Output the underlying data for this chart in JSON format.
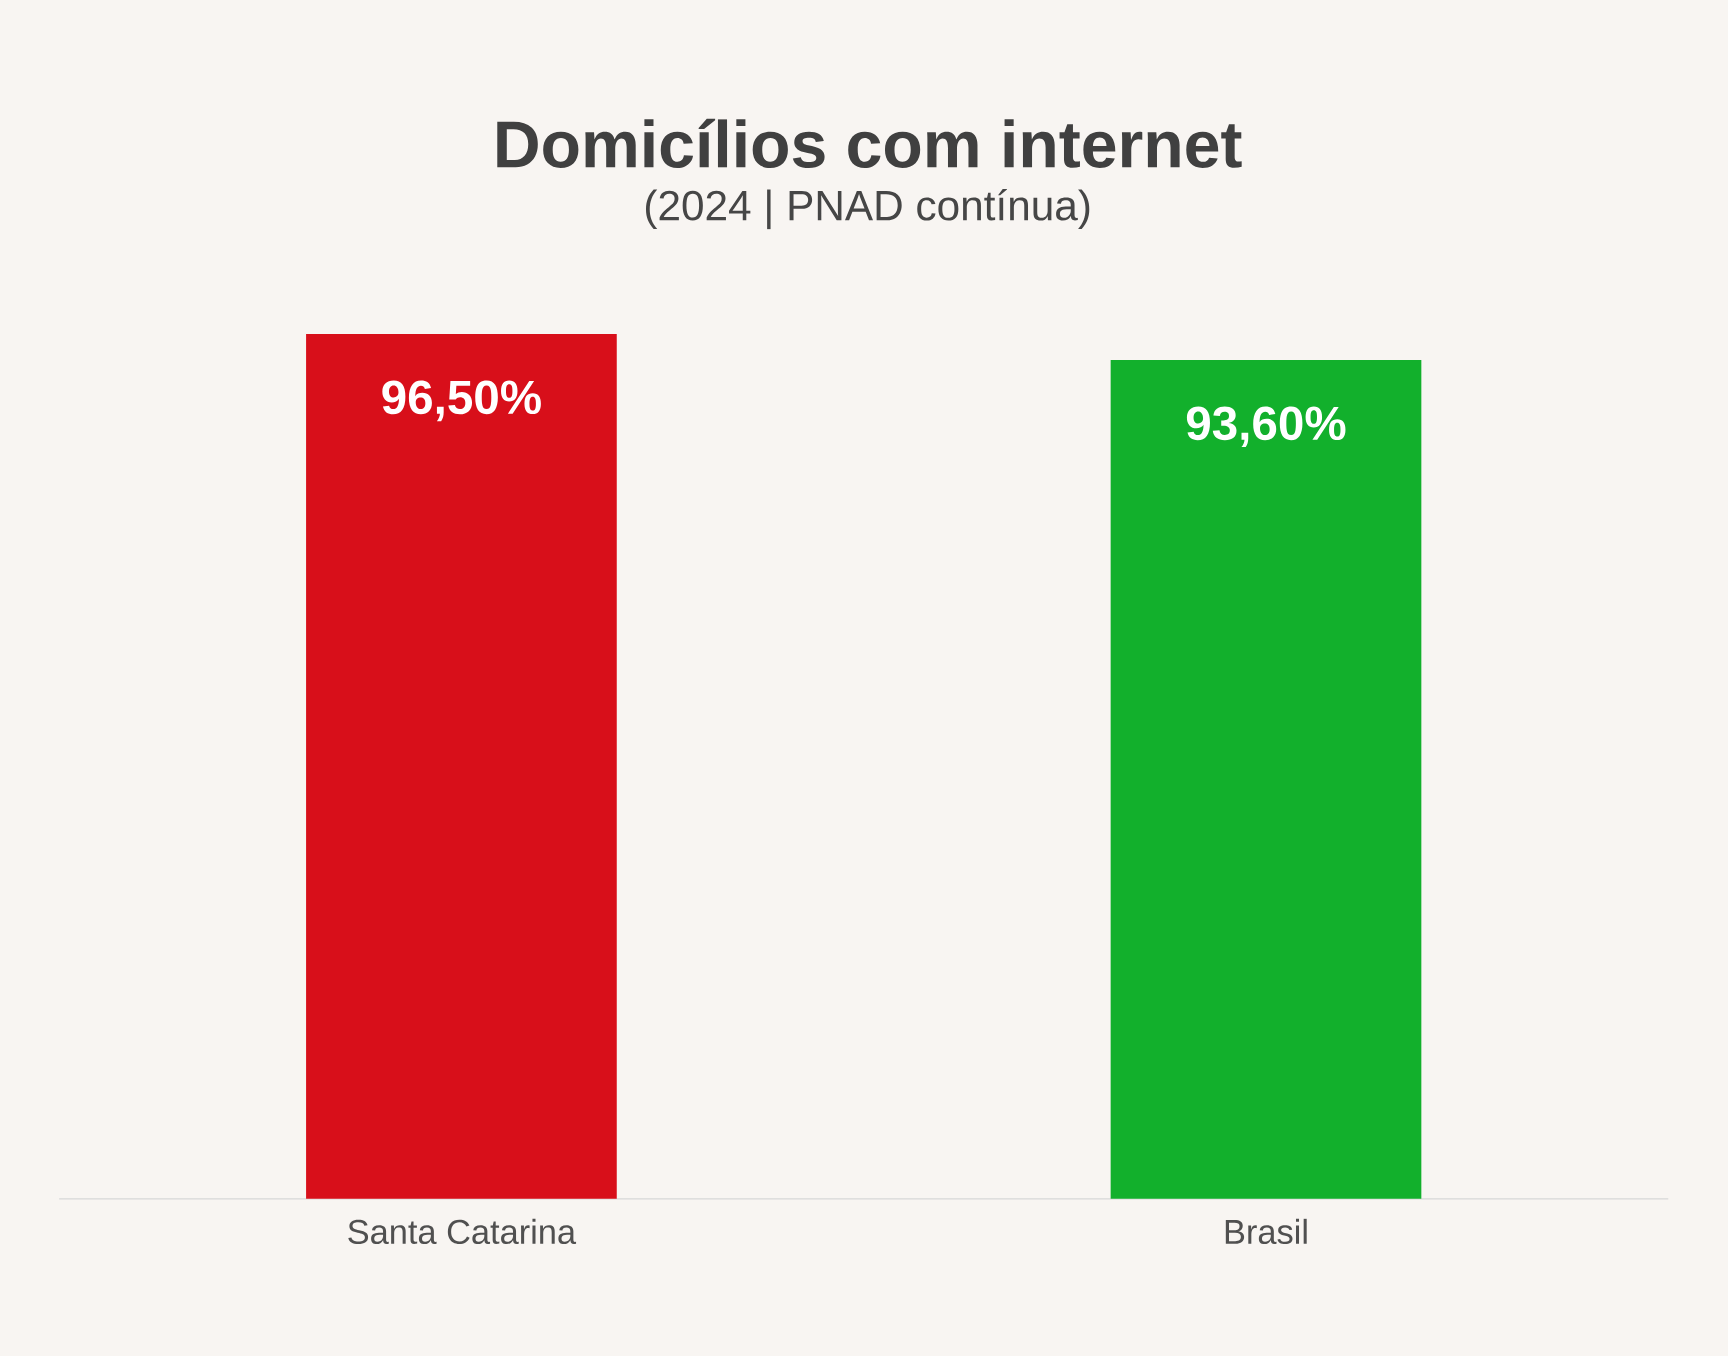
{
  "chart_data": {
    "type": "bar",
    "title": "Domicílios com internet",
    "subtitle": "(2024 | PNAD contínua)",
    "categories": [
      "Santa Catarina",
      "Brasil"
    ],
    "values": [
      96.5,
      93.6
    ],
    "value_labels": [
      "96,50%",
      "93,60%"
    ],
    "colors": [
      "#d80f1a",
      "#12b02c"
    ]
  }
}
